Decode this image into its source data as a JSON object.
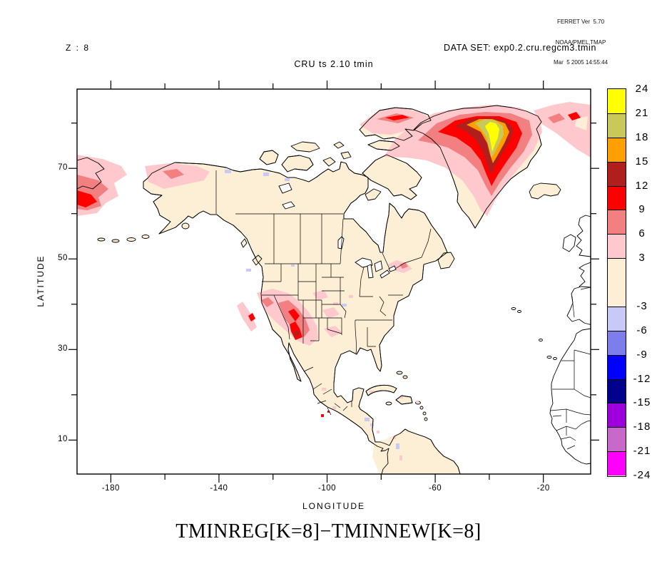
{
  "ferret_info": {
    "line1": "FERRET Ver  5.70",
    "line2": "NOAA/PMEL TMAP",
    "line3": "Mar  5 2005 14:55:44"
  },
  "header": {
    "level_label": "Z : 8",
    "dataset_label": "DATA SET: exp0.2.cru.regcm3.tmin",
    "subtitle": "CRU ts 2.10 tmin"
  },
  "title": "TMINREG[K=8]−TMINNEW[K=8]",
  "axes": {
    "x_label": "LONGITUDE",
    "y_label": "LATITUDE",
    "x_range": [
      -192.5,
      -2.5
    ],
    "y_range": [
      2.5,
      87.5
    ],
    "x_ticks": [
      {
        "lon": -180,
        "label": "-180"
      },
      {
        "lon": -160
      },
      {
        "lon": -140,
        "label": "-140"
      },
      {
        "lon": -120
      },
      {
        "lon": -100,
        "label": "-100"
      },
      {
        "lon": -80
      },
      {
        "lon": -60,
        "label": "-60"
      },
      {
        "lon": -40
      },
      {
        "lon": -20,
        "label": "-20"
      }
    ],
    "y_ticks": [
      {
        "lat": 80
      },
      {
        "lat": 70,
        "label": "70"
      },
      {
        "lat": 60
      },
      {
        "lat": 50,
        "label": "50"
      },
      {
        "lat": 40
      },
      {
        "lat": 30,
        "label": "30"
      },
      {
        "lat": 20
      },
      {
        "lat": 10,
        "label": "10"
      }
    ]
  },
  "colorbar": {
    "boundaries": [
      {
        "value": 24,
        "label": "24"
      },
      {
        "value": 21,
        "label": "21"
      },
      {
        "value": 18,
        "label": "18"
      },
      {
        "value": 15,
        "label": "15"
      },
      {
        "value": 12,
        "label": "12"
      },
      {
        "value": 9,
        "label": "9"
      },
      {
        "value": 6,
        "label": "6"
      },
      {
        "value": 3,
        "label": "3"
      },
      {
        "value": -3,
        "label": "-3"
      },
      {
        "value": -6,
        "label": "-6"
      },
      {
        "value": -9,
        "label": "-9"
      },
      {
        "value": -12,
        "label": "-12"
      },
      {
        "value": -15,
        "label": "-15"
      },
      {
        "value": -18,
        "label": "-18"
      },
      {
        "value": -21,
        "label": "-21"
      },
      {
        "value": -24,
        "label": "-24"
      }
    ],
    "cells": [
      {
        "max": 24,
        "min": 21,
        "color": "#FFFF00"
      },
      {
        "max": 21,
        "min": 18,
        "color": "#C9C95A"
      },
      {
        "max": 18,
        "min": 15,
        "color": "#FFA000"
      },
      {
        "max": 15,
        "min": 12,
        "color": "#B01E1E"
      },
      {
        "max": 12,
        "min": 9,
        "color": "#FF0000"
      },
      {
        "max": 9,
        "min": 6,
        "color": "#F28080"
      },
      {
        "max": 6,
        "min": 3,
        "color": "#FFC8CD"
      },
      {
        "max": 3,
        "min": -3,
        "color": "#FCEFD5"
      },
      {
        "max": -3,
        "min": -6,
        "color": "#C9C9F7"
      },
      {
        "max": -6,
        "min": -9,
        "color": "#7D7DEB"
      },
      {
        "max": -9,
        "min": -12,
        "color": "#0000FF"
      },
      {
        "max": -12,
        "min": -15,
        "color": "#00008C"
      },
      {
        "max": -15,
        "min": -18,
        "color": "#9E00DC"
      },
      {
        "max": -18,
        "min": -21,
        "color": "#C868C8"
      },
      {
        "max": -21,
        "min": -24,
        "color": "#FF00FF"
      }
    ]
  },
  "chart_data": {
    "type": "heatmap",
    "title": "CRU ts 2.10 tmin",
    "expression": "TMINREG[K=8]-TMINNEW[K=8]",
    "dataset": "exp0.2.cru.regcm3.tmin",
    "level": "Z : 8",
    "xlabel": "LONGITUDE",
    "ylabel": "LATITUDE",
    "xlim": [
      -192.5,
      -2.5
    ],
    "ylim": [
      2.5,
      87.5
    ],
    "color_levels": [
      -24,
      -21,
      -18,
      -15,
      -12,
      -9,
      -6,
      -3,
      3,
      6,
      9,
      12,
      15,
      18,
      21,
      24
    ],
    "legend_position": "right",
    "grid": false,
    "features": [
      {
        "region": "central Greenland (lon ~-39, lat ~78)",
        "value": "+21 to +24 yellow core with concentric khaki, orange, dark-red, red rings"
      },
      {
        "region": "north Greenland / Baffin Bay / Ellesmere",
        "value": "+3 to +9 pink field with red streaks"
      },
      {
        "region": "far-west Bering Sea domain corner",
        "value": "+3 to +12 banded pink/salmon/red wedge"
      },
      {
        "region": "interior and western Alaska",
        "value": "+3 to +6 pink patches"
      },
      {
        "region": "US Four Corners / southern Rockies",
        "value": "+3 to +12 pink-to-red cluster"
      },
      {
        "region": "California Central Valley",
        "value": "+3 to +9 strip"
      },
      {
        "region": "Great Lakes vicinity",
        "value": "+3 to +6 light pink"
      },
      {
        "region": "most North American land",
        "value": "-3 to +3 (cream)"
      },
      {
        "region": "scattered specks (NWT, Midwest, Central America, Colombia)",
        "value": "-6 to -3 pale blue"
      },
      {
        "region": "Europe / northwest Africa / ocean outside domain",
        "value": "no data (white)"
      }
    ]
  }
}
